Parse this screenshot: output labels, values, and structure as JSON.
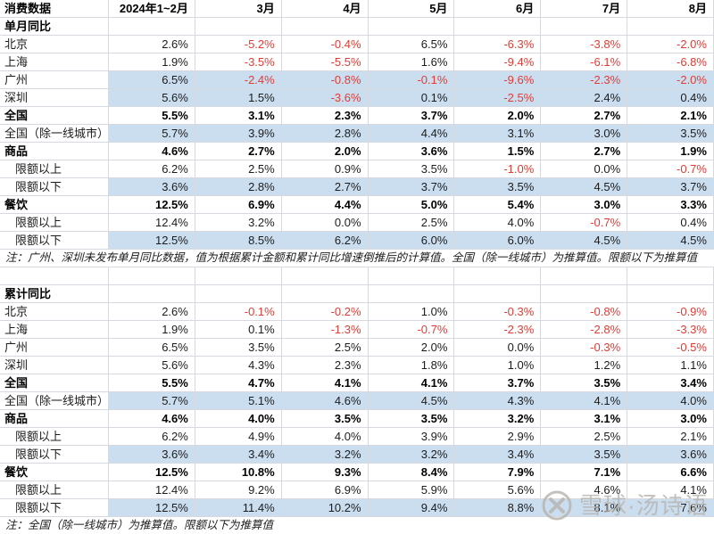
{
  "table": {
    "columns": [
      "消费数据",
      "2024年1~2月",
      "3月",
      "4月",
      "5月",
      "6月",
      "7月",
      "8月"
    ],
    "sections": [
      {
        "title": "单月同比",
        "rows": [
          {
            "label": "北京",
            "bold": false,
            "hl": false,
            "indent": false,
            "values": [
              "2.6%",
              "-5.2%",
              "-0.4%",
              "6.5%",
              "-6.3%",
              "-3.8%",
              "-2.0%"
            ]
          },
          {
            "label": "上海",
            "bold": false,
            "hl": false,
            "indent": false,
            "values": [
              "1.9%",
              "-3.5%",
              "-5.5%",
              "1.6%",
              "-9.4%",
              "-6.1%",
              "-6.8%"
            ]
          },
          {
            "label": "广州",
            "bold": false,
            "hl": true,
            "indent": false,
            "values": [
              "6.5%",
              "-2.4%",
              "-0.8%",
              "-0.1%",
              "-9.6%",
              "-2.3%",
              "-2.0%"
            ]
          },
          {
            "label": "深圳",
            "bold": false,
            "hl": true,
            "indent": false,
            "values": [
              "5.6%",
              "1.5%",
              "-3.6%",
              "0.1%",
              "-2.5%",
              "2.4%",
              "0.4%"
            ]
          },
          {
            "label": "全国",
            "bold": true,
            "hl": false,
            "indent": false,
            "values": [
              "5.5%",
              "3.1%",
              "2.3%",
              "3.7%",
              "2.0%",
              "2.7%",
              "2.1%"
            ]
          },
          {
            "label": "全国（除一线城市）",
            "bold": false,
            "hl": true,
            "indent": false,
            "values": [
              "5.7%",
              "3.9%",
              "2.8%",
              "4.4%",
              "3.1%",
              "3.0%",
              "3.5%"
            ]
          },
          {
            "label": "商品",
            "bold": true,
            "hl": false,
            "indent": false,
            "values": [
              "4.6%",
              "2.7%",
              "2.0%",
              "3.6%",
              "1.5%",
              "2.7%",
              "1.9%"
            ]
          },
          {
            "label": "限额以上",
            "bold": false,
            "hl": false,
            "indent": true,
            "values": [
              "6.2%",
              "2.5%",
              "0.9%",
              "3.5%",
              "-1.0%",
              "0.0%",
              "-0.7%"
            ]
          },
          {
            "label": "限额以下",
            "bold": false,
            "hl": true,
            "indent": true,
            "values": [
              "3.6%",
              "2.8%",
              "2.7%",
              "3.7%",
              "3.5%",
              "4.5%",
              "3.7%"
            ]
          },
          {
            "label": "餐饮",
            "bold": true,
            "hl": false,
            "indent": false,
            "values": [
              "12.5%",
              "6.9%",
              "4.4%",
              "5.0%",
              "5.4%",
              "3.0%",
              "3.3%"
            ]
          },
          {
            "label": "限额以上",
            "bold": false,
            "hl": false,
            "indent": true,
            "values": [
              "12.4%",
              "3.2%",
              "0.0%",
              "2.5%",
              "4.0%",
              "-0.7%",
              "0.4%"
            ]
          },
          {
            "label": "限额以下",
            "bold": false,
            "hl": true,
            "indent": true,
            "values": [
              "12.5%",
              "8.5%",
              "6.2%",
              "6.0%",
              "6.0%",
              "4.5%",
              "4.5%"
            ]
          }
        ],
        "note": "注：广州、深圳未发布单月同比数据，值为根据累计金额和累计同比增速倒推后的计算值。全国（除一线城市）为推算值。限额以下为推算值"
      },
      {
        "title": "累计同比",
        "rows": [
          {
            "label": "北京",
            "bold": false,
            "hl": false,
            "indent": false,
            "values": [
              "2.6%",
              "-0.1%",
              "-0.2%",
              "1.0%",
              "-0.3%",
              "-0.8%",
              "-0.9%"
            ]
          },
          {
            "label": "上海",
            "bold": false,
            "hl": false,
            "indent": false,
            "values": [
              "1.9%",
              "0.1%",
              "-1.3%",
              "-0.7%",
              "-2.3%",
              "-2.8%",
              "-3.3%"
            ]
          },
          {
            "label": "广州",
            "bold": false,
            "hl": false,
            "indent": false,
            "values": [
              "6.5%",
              "3.5%",
              "2.5%",
              "2.0%",
              "0.0%",
              "-0.3%",
              "-0.5%"
            ]
          },
          {
            "label": "深圳",
            "bold": false,
            "hl": false,
            "indent": false,
            "values": [
              "5.6%",
              "4.3%",
              "2.3%",
              "1.8%",
              "1.0%",
              "1.2%",
              "1.1%"
            ]
          },
          {
            "label": "全国",
            "bold": true,
            "hl": false,
            "indent": false,
            "values": [
              "5.5%",
              "4.7%",
              "4.1%",
              "4.1%",
              "3.7%",
              "3.5%",
              "3.4%"
            ]
          },
          {
            "label": "全国（除一线城市）",
            "bold": false,
            "hl": true,
            "indent": false,
            "values": [
              "5.7%",
              "5.1%",
              "4.6%",
              "4.5%",
              "4.3%",
              "4.1%",
              "4.0%"
            ]
          },
          {
            "label": "商品",
            "bold": true,
            "hl": false,
            "indent": false,
            "values": [
              "4.6%",
              "4.0%",
              "3.5%",
              "3.5%",
              "3.2%",
              "3.1%",
              "3.0%"
            ]
          },
          {
            "label": "限额以上",
            "bold": false,
            "hl": false,
            "indent": true,
            "values": [
              "6.2%",
              "4.9%",
              "4.0%",
              "3.9%",
              "2.9%",
              "2.5%",
              "2.1%"
            ]
          },
          {
            "label": "限额以下",
            "bold": false,
            "hl": true,
            "indent": true,
            "values": [
              "3.6%",
              "3.4%",
              "3.2%",
              "3.2%",
              "3.4%",
              "3.5%",
              "3.6%"
            ]
          },
          {
            "label": "餐饮",
            "bold": true,
            "hl": false,
            "indent": false,
            "values": [
              "12.5%",
              "10.8%",
              "9.3%",
              "8.4%",
              "7.9%",
              "7.1%",
              "6.6%"
            ]
          },
          {
            "label": "限额以上",
            "bold": false,
            "hl": false,
            "indent": true,
            "values": [
              "12.4%",
              "9.2%",
              "6.9%",
              "5.9%",
              "5.6%",
              "4.6%",
              "4.1%"
            ]
          },
          {
            "label": "限额以下",
            "bold": false,
            "hl": true,
            "indent": true,
            "values": [
              "12.5%",
              "11.4%",
              "10.2%",
              "9.4%",
              "8.8%",
              "8.1%",
              "7.6%"
            ]
          }
        ],
        "note": "注：全国（除一线城市）为推算值。限额以下为推算值"
      }
    ]
  },
  "colors": {
    "highlight": "#cbdef0",
    "negative": "#e53b33",
    "gridline": "#d6dae0",
    "text": "#1c1c1c"
  },
  "watermark": {
    "icon": "xueqiu-logo",
    "text": "雪球·汤诗语"
  }
}
